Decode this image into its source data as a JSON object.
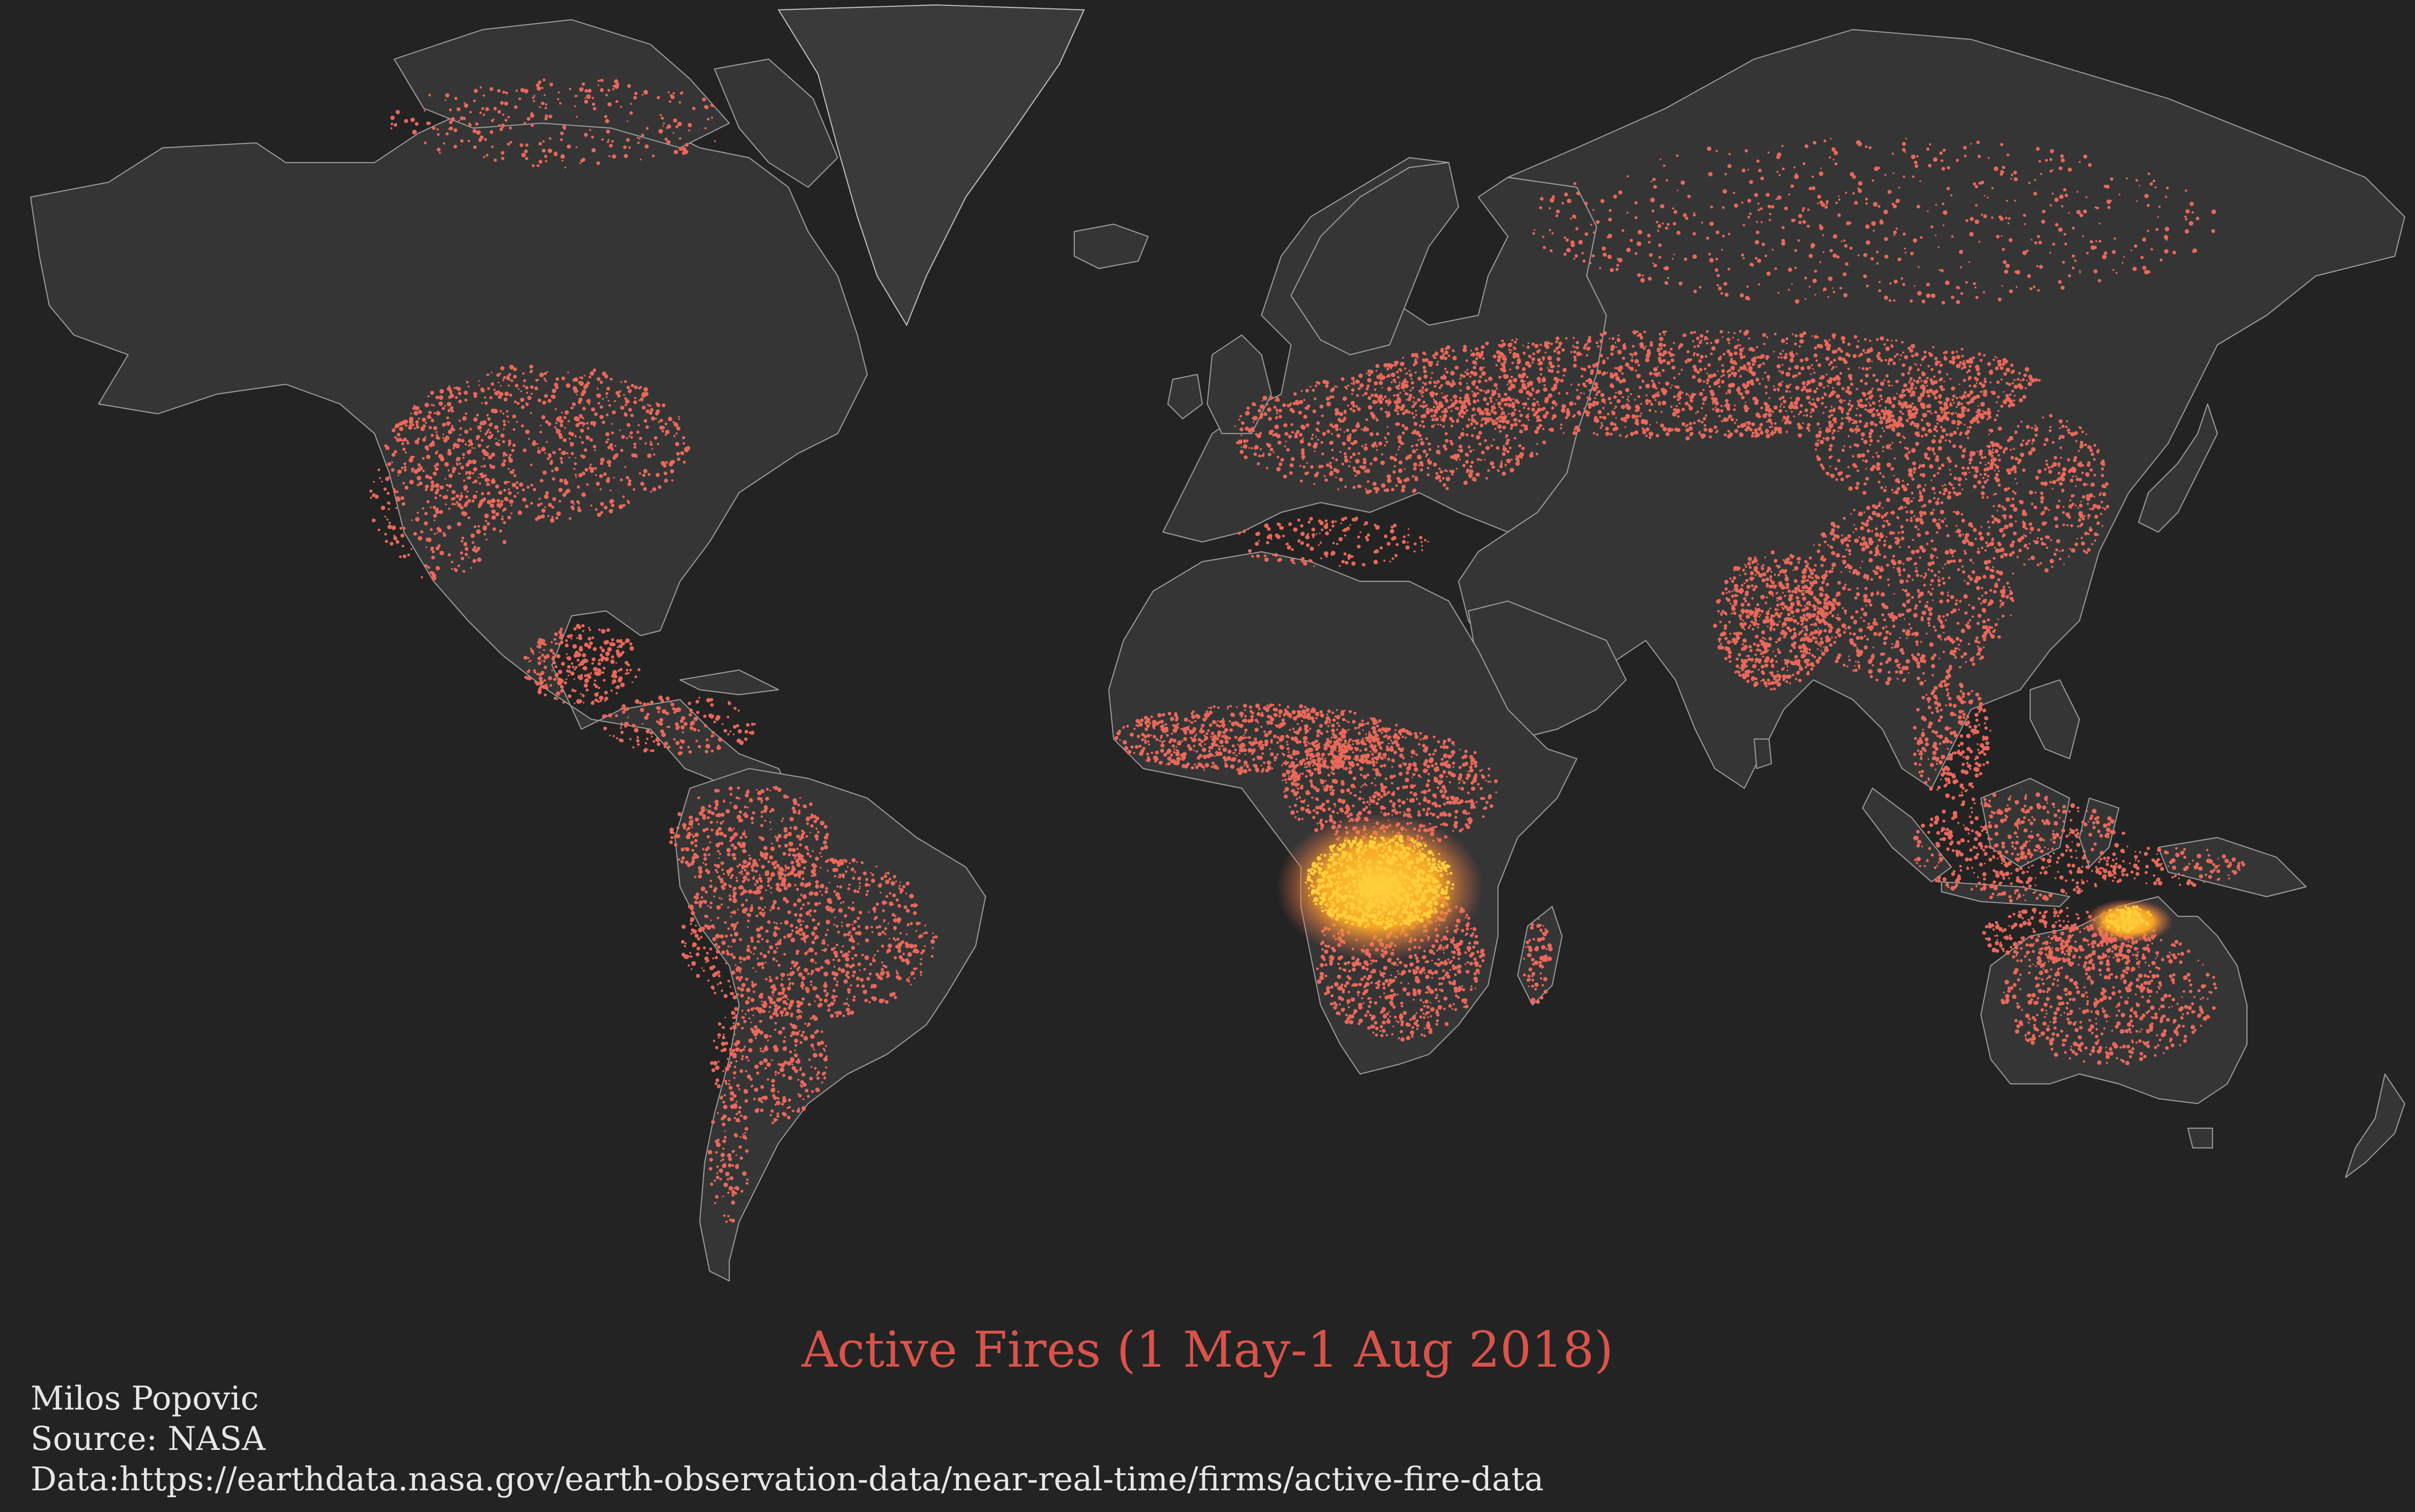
{
  "title": "Active Fires (1 May-1 Aug 2018)",
  "author": "Milos Popovic",
  "source": "Source: NASA",
  "data_url": "Data:https://earthdata.nasa.gov/earth-observation-data/near-real-time/firms/active-fire-data",
  "colors": {
    "background": "#232323",
    "land": "#353535",
    "border": "#9a9a9a",
    "fire": "#e8685a",
    "fire_hot": "#ffcf3a",
    "title": "#d9534a",
    "credits": "#e6e6e6"
  }
}
